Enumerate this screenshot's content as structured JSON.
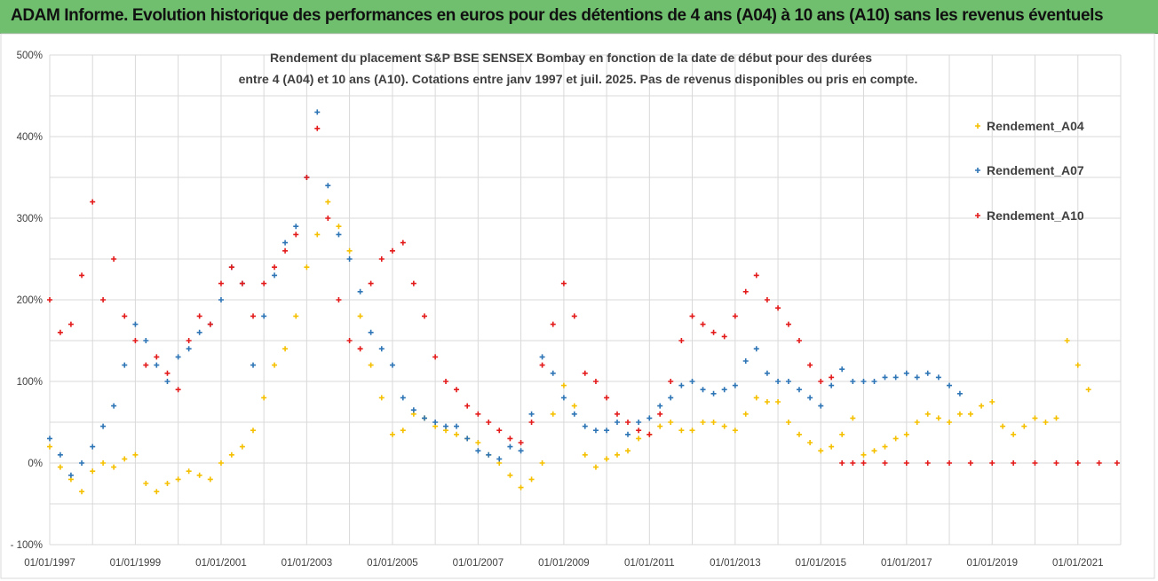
{
  "banner": {
    "title": "ADAM Informe. Evolution historique des performances en euros pour des détentions de 4 ans (A04) à 10 ans (A10) sans les revenus éventuels"
  },
  "colors": {
    "banner_bg": "#70bf6e",
    "series_A04": "#f5c000",
    "series_A07": "#2e75b6",
    "series_A10": "#e31b1b",
    "grid": "#d9d9d9"
  },
  "chart_data": {
    "type": "scatter",
    "title_lines": [
      "Rendement du placement S&P BSE SENSEX Bombay en fonction de la date de début pour des durées",
      "entre 4 (A04) et 10 ans (A10). Cotations entre janv 1997 et juil. 2025. Pas de revenus disponibles ou pris en compte."
    ],
    "x_axis": {
      "min": "1997-01-01",
      "max": "2022-01-01",
      "tick_labels": [
        "01/01/1997",
        "01/01/1999",
        "01/01/2001",
        "01/01/2003",
        "01/01/2005",
        "01/01/2007",
        "01/01/2009",
        "01/01/2011",
        "01/01/2013",
        "01/01/2015",
        "01/01/2017",
        "01/01/2019",
        "01/01/2021"
      ],
      "minor_grid_every_year": true
    },
    "y_axis": {
      "min": -1.0,
      "max": 5.0,
      "step": 0.5,
      "tick_labels": [
        "500%",
        "400%",
        "300%",
        "200%",
        "100%",
        "0%",
        "- 100%"
      ],
      "tick_values": [
        5,
        4,
        3,
        2,
        1,
        0,
        -1
      ]
    },
    "grid": true,
    "legend_position": "right",
    "marker": "plus",
    "series": [
      {
        "name": "Rendement_A04",
        "color": "#f5c000",
        "x": [
          "1997-01-01",
          "1997-04-01",
          "1997-07-01",
          "1997-10-01",
          "1998-01-01",
          "1998-04-01",
          "1998-07-01",
          "1998-10-01",
          "1999-01-01",
          "1999-04-01",
          "1999-07-01",
          "1999-10-01",
          "2000-01-01",
          "2000-04-01",
          "2000-07-01",
          "2000-10-01",
          "2001-01-01",
          "2001-04-01",
          "2001-07-01",
          "2001-10-01",
          "2002-01-01",
          "2002-04-01",
          "2002-07-01",
          "2002-10-01",
          "2003-01-01",
          "2003-04-01",
          "2003-07-01",
          "2003-10-01",
          "2004-01-01",
          "2004-04-01",
          "2004-07-01",
          "2004-10-01",
          "2005-01-01",
          "2005-04-01",
          "2005-07-01",
          "2005-10-01",
          "2006-01-01",
          "2006-04-01",
          "2006-07-01",
          "2006-10-01",
          "2007-01-01",
          "2007-04-01",
          "2007-07-01",
          "2007-10-01",
          "2008-01-01",
          "2008-04-01",
          "2008-07-01",
          "2008-10-01",
          "2009-01-01",
          "2009-04-01",
          "2009-07-01",
          "2009-10-01",
          "2010-01-01",
          "2010-04-01",
          "2010-07-01",
          "2010-10-01",
          "2011-01-01",
          "2011-04-01",
          "2011-07-01",
          "2011-10-01",
          "2012-01-01",
          "2012-04-01",
          "2012-07-01",
          "2012-10-01",
          "2013-01-01",
          "2013-04-01",
          "2013-07-01",
          "2013-10-01",
          "2014-01-01",
          "2014-04-01",
          "2014-07-01",
          "2014-10-01",
          "2015-01-01",
          "2015-04-01",
          "2015-07-01",
          "2015-10-01",
          "2016-01-01",
          "2016-04-01",
          "2016-07-01",
          "2016-10-01",
          "2017-01-01",
          "2017-04-01",
          "2017-07-01",
          "2017-10-01",
          "2018-01-01",
          "2018-04-01",
          "2018-07-01",
          "2018-10-01",
          "2019-01-01",
          "2019-04-01",
          "2019-07-01",
          "2019-10-01",
          "2020-01-01",
          "2020-04-01",
          "2020-07-01",
          "2020-10-01",
          "2021-01-01",
          "2021-04-01"
        ],
        "y": [
          0.2,
          -0.05,
          -0.2,
          -0.35,
          -0.1,
          0.0,
          -0.05,
          0.05,
          0.1,
          -0.25,
          -0.35,
          -0.25,
          -0.2,
          -0.1,
          -0.15,
          -0.2,
          0.0,
          0.1,
          0.2,
          0.4,
          0.8,
          1.2,
          1.4,
          1.8,
          2.4,
          2.8,
          3.2,
          2.9,
          2.6,
          1.8,
          1.2,
          0.8,
          0.35,
          0.4,
          0.6,
          0.55,
          0.45,
          0.4,
          0.35,
          0.3,
          0.25,
          0.1,
          0.0,
          -0.15,
          -0.3,
          -0.2,
          0.0,
          0.6,
          0.95,
          0.7,
          0.1,
          -0.05,
          0.05,
          0.1,
          0.15,
          0.3,
          0.35,
          0.45,
          0.5,
          0.4,
          0.4,
          0.5,
          0.5,
          0.45,
          0.4,
          0.6,
          0.8,
          0.75,
          0.75,
          0.5,
          0.35,
          0.25,
          0.15,
          0.2,
          0.35,
          0.55,
          0.1,
          0.15,
          0.2,
          0.3,
          0.35,
          0.5,
          0.6,
          0.55,
          0.5,
          0.6,
          0.6,
          0.7,
          0.75,
          0.45,
          0.35,
          0.45,
          0.55,
          0.5,
          0.55,
          1.5,
          1.2,
          0.9
        ]
      },
      {
        "name": "Rendement_A07",
        "color": "#2e75b6",
        "x": [
          "1997-01-01",
          "1997-04-01",
          "1997-07-01",
          "1997-10-01",
          "1998-01-01",
          "1998-04-01",
          "1998-07-01",
          "1998-10-01",
          "1999-01-01",
          "1999-04-01",
          "1999-07-01",
          "1999-10-01",
          "2000-01-01",
          "2000-04-01",
          "2000-07-01",
          "2000-10-01",
          "2001-01-01",
          "2001-04-01",
          "2001-07-01",
          "2001-10-01",
          "2002-01-01",
          "2002-04-01",
          "2002-07-01",
          "2002-10-01",
          "2003-01-01",
          "2003-04-01",
          "2003-07-01",
          "2003-10-01",
          "2004-01-01",
          "2004-04-01",
          "2004-07-01",
          "2004-10-01",
          "2005-01-01",
          "2005-04-01",
          "2005-07-01",
          "2005-10-01",
          "2006-01-01",
          "2006-04-01",
          "2006-07-01",
          "2006-10-01",
          "2007-01-01",
          "2007-04-01",
          "2007-07-01",
          "2007-10-01",
          "2008-01-01",
          "2008-04-01",
          "2008-07-01",
          "2008-10-01",
          "2009-01-01",
          "2009-04-01",
          "2009-07-01",
          "2009-10-01",
          "2010-01-01",
          "2010-04-01",
          "2010-07-01",
          "2010-10-01",
          "2011-01-01",
          "2011-04-01",
          "2011-07-01",
          "2011-10-01",
          "2012-01-01",
          "2012-04-01",
          "2012-07-01",
          "2012-10-01",
          "2013-01-01",
          "2013-04-01",
          "2013-07-01",
          "2013-10-01",
          "2014-01-01",
          "2014-04-01",
          "2014-07-01",
          "2014-10-01",
          "2015-01-01",
          "2015-04-01",
          "2015-07-01",
          "2015-10-01",
          "2016-01-01",
          "2016-04-01",
          "2016-07-01",
          "2016-10-01",
          "2017-01-01",
          "2017-04-01",
          "2017-07-01",
          "2017-10-01",
          "2018-01-01",
          "2018-04-01"
        ],
        "y": [
          0.3,
          0.1,
          -0.15,
          0.0,
          0.2,
          0.45,
          0.7,
          1.2,
          1.7,
          1.5,
          1.2,
          1.0,
          1.3,
          1.4,
          1.6,
          1.7,
          2.0,
          2.4,
          2.2,
          1.2,
          1.8,
          2.3,
          2.7,
          2.9,
          3.5,
          4.3,
          3.4,
          2.8,
          2.5,
          2.1,
          1.6,
          1.4,
          1.2,
          0.8,
          0.65,
          0.55,
          0.5,
          0.45,
          0.45,
          0.3,
          0.15,
          0.1,
          0.05,
          0.2,
          0.15,
          0.6,
          1.3,
          1.1,
          0.8,
          0.6,
          0.45,
          0.4,
          0.4,
          0.5,
          0.35,
          0.5,
          0.55,
          0.7,
          0.8,
          0.95,
          1.0,
          0.9,
          0.85,
          0.9,
          0.95,
          1.25,
          1.4,
          1.1,
          1.0,
          1.0,
          0.9,
          0.8,
          0.7,
          0.95,
          1.15,
          1.0,
          1.0,
          1.0,
          1.05,
          1.05,
          1.1,
          1.05,
          1.1,
          1.05,
          0.95,
          0.85
        ]
      },
      {
        "name": "Rendement_A10",
        "color": "#e31b1b",
        "x": [
          "1997-01-01",
          "1997-04-01",
          "1997-07-01",
          "1997-10-01",
          "1998-01-01",
          "1998-04-01",
          "1998-07-01",
          "1998-10-01",
          "1999-01-01",
          "1999-04-01",
          "1999-07-01",
          "1999-10-01",
          "2000-01-01",
          "2000-04-01",
          "2000-07-01",
          "2000-10-01",
          "2001-01-01",
          "2001-04-01",
          "2001-07-01",
          "2001-10-01",
          "2002-01-01",
          "2002-04-01",
          "2002-07-01",
          "2002-10-01",
          "2003-01-01",
          "2003-04-01",
          "2003-07-01",
          "2003-10-01",
          "2004-01-01",
          "2004-04-01",
          "2004-07-01",
          "2004-10-01",
          "2005-01-01",
          "2005-04-01",
          "2005-07-01",
          "2005-10-01",
          "2006-01-01",
          "2006-04-01",
          "2006-07-01",
          "2006-10-01",
          "2007-01-01",
          "2007-04-01",
          "2007-07-01",
          "2007-10-01",
          "2008-01-01",
          "2008-04-01",
          "2008-07-01",
          "2008-10-01",
          "2009-01-01",
          "2009-04-01",
          "2009-07-01",
          "2009-10-01",
          "2010-01-01",
          "2010-04-01",
          "2010-07-01",
          "2010-10-01",
          "2011-01-01",
          "2011-04-01",
          "2011-07-01",
          "2011-10-01",
          "2012-01-01",
          "2012-04-01",
          "2012-07-01",
          "2012-10-01",
          "2013-01-01",
          "2013-04-01",
          "2013-07-01",
          "2013-10-01",
          "2014-01-01",
          "2014-04-01",
          "2014-07-01",
          "2014-10-01",
          "2015-01-01",
          "2015-04-01",
          "2015-07-01",
          "2015-10-01",
          "2016-01-01",
          "2016-07-01",
          "2017-01-01",
          "2017-07-01",
          "2018-01-01",
          "2018-07-01",
          "2019-01-01",
          "2019-07-01",
          "2020-01-01",
          "2020-07-01",
          "2021-01-01",
          "2021-07-01",
          "2021-12-01"
        ],
        "y": [
          2.0,
          1.6,
          1.7,
          2.3,
          3.2,
          2.0,
          2.5,
          1.8,
          1.5,
          1.2,
          1.3,
          1.1,
          0.9,
          1.5,
          1.8,
          1.7,
          2.2,
          2.4,
          2.2,
          1.8,
          2.2,
          2.4,
          2.6,
          2.8,
          3.5,
          4.1,
          3.0,
          2.0,
          1.5,
          1.4,
          2.2,
          2.5,
          2.6,
          2.7,
          2.2,
          1.8,
          1.3,
          1.0,
          0.9,
          0.7,
          0.6,
          0.5,
          0.4,
          0.3,
          0.25,
          0.5,
          1.2,
          1.7,
          2.2,
          1.8,
          1.1,
          1.0,
          0.8,
          0.6,
          0.5,
          0.4,
          0.35,
          0.6,
          1.0,
          1.5,
          1.8,
          1.7,
          1.6,
          1.55,
          1.8,
          2.1,
          2.3,
          2.0,
          1.9,
          1.7,
          1.5,
          1.2,
          1.0,
          1.05,
          0.0,
          0.0,
          0.0,
          0.0,
          0.0,
          0.0,
          0.0,
          0.0,
          0.0,
          0.0,
          0.0,
          0.0,
          0.0,
          0.0,
          0.0
        ]
      }
    ]
  }
}
